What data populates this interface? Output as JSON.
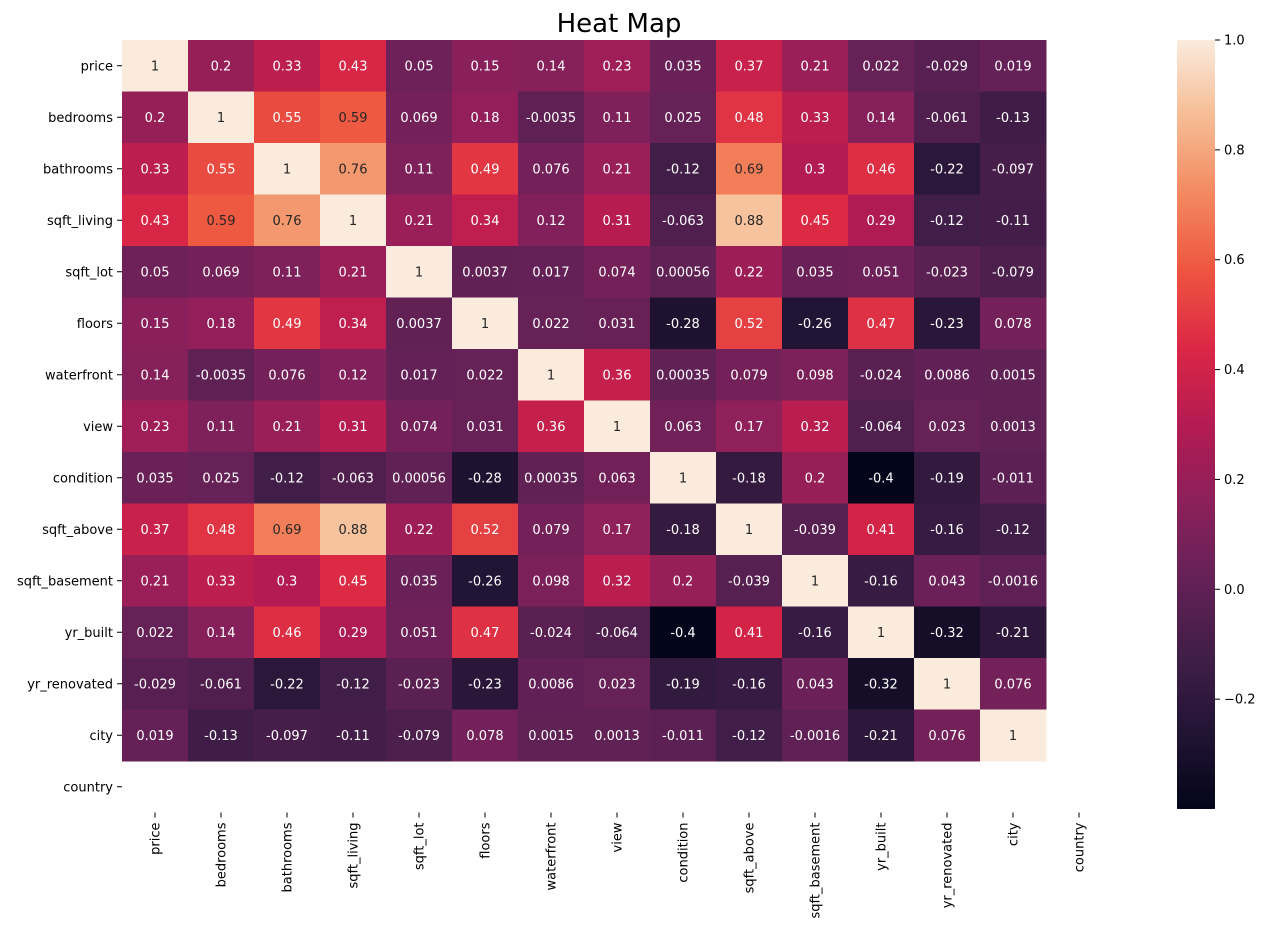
{
  "chart_data": {
    "type": "heatmap",
    "title": "Heat Map",
    "xlabel": "",
    "ylabel": "",
    "rows": [
      "price",
      "bedrooms",
      "bathrooms",
      "sqft_living",
      "sqft_lot",
      "floors",
      "waterfront",
      "view",
      "condition",
      "sqft_above",
      "sqft_basement",
      "yr_built",
      "yr_renovated",
      "city",
      "country"
    ],
    "columns": [
      "price",
      "bedrooms",
      "bathrooms",
      "sqft_living",
      "sqft_lot",
      "floors",
      "waterfront",
      "view",
      "condition",
      "sqft_above",
      "sqft_basement",
      "yr_built",
      "yr_renovated",
      "city",
      "country"
    ],
    "values": [
      [
        "1",
        "0.2",
        "0.33",
        "0.43",
        "0.05",
        "0.15",
        "0.14",
        "0.23",
        "0.035",
        "0.37",
        "0.21",
        "0.022",
        "-0.029",
        "0.019",
        null
      ],
      [
        "0.2",
        "1",
        "0.55",
        "0.59",
        "0.069",
        "0.18",
        "-0.0035",
        "0.11",
        "0.025",
        "0.48",
        "0.33",
        "0.14",
        "-0.061",
        "-0.13",
        null
      ],
      [
        "0.33",
        "0.55",
        "1",
        "0.76",
        "0.11",
        "0.49",
        "0.076",
        "0.21",
        "-0.12",
        "0.69",
        "0.3",
        "0.46",
        "-0.22",
        "-0.097",
        null
      ],
      [
        "0.43",
        "0.59",
        "0.76",
        "1",
        "0.21",
        "0.34",
        "0.12",
        "0.31",
        "-0.063",
        "0.88",
        "0.45",
        "0.29",
        "-0.12",
        "-0.11",
        null
      ],
      [
        "0.05",
        "0.069",
        "0.11",
        "0.21",
        "1",
        "0.0037",
        "0.017",
        "0.074",
        "0.00056",
        "0.22",
        "0.035",
        "0.051",
        "-0.023",
        "-0.079",
        null
      ],
      [
        "0.15",
        "0.18",
        "0.49",
        "0.34",
        "0.0037",
        "1",
        "0.022",
        "0.031",
        "-0.28",
        "0.52",
        "-0.26",
        "0.47",
        "-0.23",
        "0.078",
        null
      ],
      [
        "0.14",
        "-0.0035",
        "0.076",
        "0.12",
        "0.017",
        "0.022",
        "1",
        "0.36",
        "0.00035",
        "0.079",
        "0.098",
        "-0.024",
        "0.0086",
        "0.0015",
        null
      ],
      [
        "0.23",
        "0.11",
        "0.21",
        "0.31",
        "0.074",
        "0.031",
        "0.36",
        "1",
        "0.063",
        "0.17",
        "0.32",
        "-0.064",
        "0.023",
        "0.0013",
        null
      ],
      [
        "0.035",
        "0.025",
        "-0.12",
        "-0.063",
        "0.00056",
        "-0.28",
        "0.00035",
        "0.063",
        "1",
        "-0.18",
        "0.2",
        "-0.4",
        "-0.19",
        "-0.011",
        null
      ],
      [
        "0.37",
        "0.48",
        "0.69",
        "0.88",
        "0.22",
        "0.52",
        "0.079",
        "0.17",
        "-0.18",
        "1",
        "-0.039",
        "0.41",
        "-0.16",
        "-0.12",
        null
      ],
      [
        "0.21",
        "0.33",
        "0.3",
        "0.45",
        "0.035",
        "-0.26",
        "0.098",
        "0.32",
        "0.2",
        "-0.039",
        "1",
        "-0.16",
        "0.043",
        "-0.0016",
        null
      ],
      [
        "0.022",
        "0.14",
        "0.46",
        "0.29",
        "0.051",
        "0.47",
        "-0.024",
        "-0.064",
        "-0.4",
        "0.41",
        "-0.16",
        "1",
        "-0.32",
        "-0.21",
        null
      ],
      [
        "-0.029",
        "-0.061",
        "-0.22",
        "-0.12",
        "-0.023",
        "-0.23",
        "0.0086",
        "0.023",
        "-0.19",
        "-0.16",
        "0.043",
        "-0.32",
        "1",
        "0.076",
        null
      ],
      [
        "0.019",
        "-0.13",
        "-0.097",
        "-0.11",
        "-0.079",
        "0.078",
        "0.0015",
        "0.0013",
        "-0.011",
        "-0.12",
        "-0.0016",
        "-0.21",
        "0.076",
        "1",
        null
      ],
      [
        null,
        null,
        null,
        null,
        null,
        null,
        null,
        null,
        null,
        null,
        null,
        null,
        null,
        null,
        null
      ]
    ],
    "colorbar": {
      "min": -0.4,
      "max": 1,
      "ticks": [
        1.0,
        0.8,
        0.6,
        0.4,
        0.2,
        0.0,
        -0.2
      ],
      "tick_labels": [
        "1.0",
        "0.8",
        "0.6",
        "0.4",
        "0.2",
        "0.0",
        "−0.2"
      ]
    },
    "colormap": "rocket",
    "grid": false,
    "colorbar_placement": "right"
  }
}
